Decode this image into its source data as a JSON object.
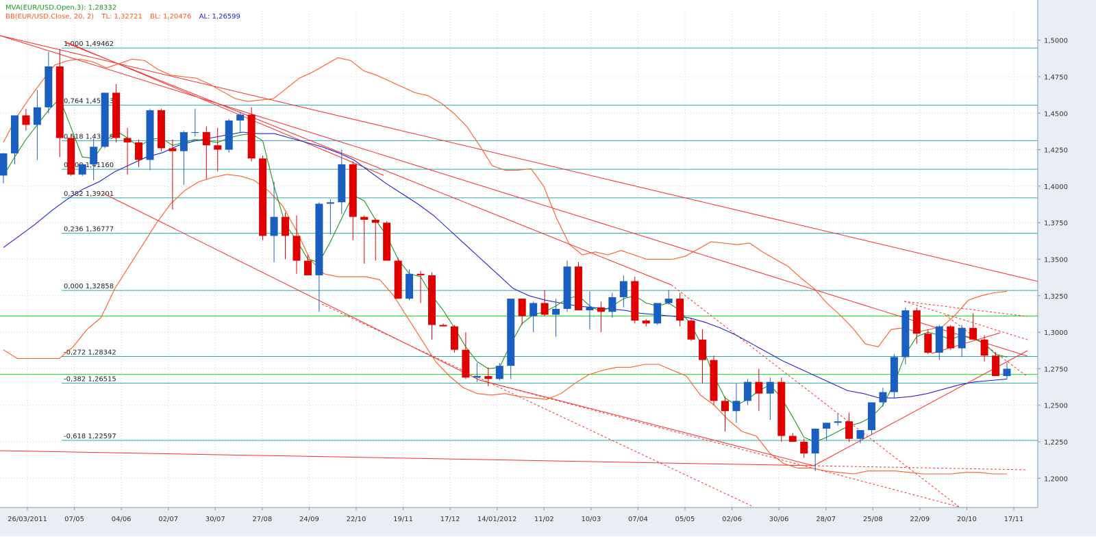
{
  "indicators": {
    "mva_label": "MVA(EUR/USD.Open,3): 1,28332",
    "bb_label": "BB(EUR/USD.Close, 20, 2)",
    "bb_tl_label": "TL: 1,32721",
    "bb_bl_label": "BL: 1,20476",
    "bb_al_label": "AL: 1,26599"
  },
  "colors": {
    "up": "#1a5fbf",
    "down": "#e00000",
    "mva": "#1a9a1a",
    "bb": "#ff5a1e",
    "al": "#2323d6",
    "fib": "#2aa8a8",
    "green_line": "#2ee02e",
    "trend": "#ff2a2a",
    "grid": "#c8d0d8",
    "axis_bg": "#e9eef5"
  },
  "chart_data": {
    "type": "candlestick",
    "symbol": "EUR/USD",
    "ylim": [
      1.18,
      1.52
    ],
    "y_ticks": [
      "1,2000",
      "1,2250",
      "1,2500",
      "1,2750",
      "1,3000",
      "1,3250",
      "1,3500",
      "1,3750",
      "1,4000",
      "1,4250",
      "1,4500",
      "1,4750",
      "1,5000"
    ],
    "x_labels": [
      "26/03/2011",
      "07/05",
      "04/06",
      "02/07",
      "30/07",
      "27/08",
      "24/09",
      "22/10",
      "19/11",
      "17/12",
      "14/01/2012",
      "11/02",
      "10/03",
      "07/04",
      "05/05",
      "02/06",
      "30/06",
      "28/07",
      "25/08",
      "22/09",
      "20/10",
      "17/11"
    ],
    "fib_levels": [
      {
        "label": "1,000 1,49462",
        "value": 1.49462
      },
      {
        "label": "0,764 1,45543",
        "value": 1.45543
      },
      {
        "label": "0,618 1,43119",
        "value": 1.43119
      },
      {
        "label": "0,500 1,41160",
        "value": 1.4116
      },
      {
        "label": "0,382 1,39201",
        "value": 1.39201
      },
      {
        "label": "0,236 1,36777",
        "value": 1.36777
      },
      {
        "label": "0,000 1,32858",
        "value": 1.32858
      },
      {
        "label": "-0,272 1,28342",
        "value": 1.28342
      },
      {
        "label": "-0,382 1,26515",
        "value": 1.26515
      },
      {
        "label": "-0,618 1,22597",
        "value": 1.22597
      }
    ],
    "horizontal_lines": [
      {
        "label": "1,31115",
        "value": 1.31115
      },
      {
        "label": "1,27119",
        "value": 1.27119
      }
    ],
    "last_price": {
      "label": "1,27523",
      "value": 1.27523
    },
    "candles": [
      [
        1.4073,
        1.4227,
        1.402,
        1.4225
      ],
      [
        1.4225,
        1.4485,
        1.415,
        1.4485
      ],
      [
        1.4485,
        1.453,
        1.438,
        1.442
      ],
      [
        1.442,
        1.466,
        1.418,
        1.454
      ],
      [
        1.454,
        1.492,
        1.45,
        1.482
      ],
      [
        1.482,
        1.494,
        1.42,
        1.433
      ],
      [
        1.433,
        1.436,
        1.407,
        1.408
      ],
      [
        1.408,
        1.416,
        1.407,
        1.415
      ],
      [
        1.415,
        1.433,
        1.404,
        1.427
      ],
      [
        1.427,
        1.464,
        1.426,
        1.464
      ],
      [
        1.464,
        1.47,
        1.43,
        1.433
      ],
      [
        1.433,
        1.44,
        1.408,
        1.43
      ],
      [
        1.43,
        1.432,
        1.413,
        1.418
      ],
      [
        1.418,
        1.453,
        1.411,
        1.452
      ],
      [
        1.452,
        1.453,
        1.424,
        1.426
      ],
      [
        1.426,
        1.432,
        1.384,
        1.424
      ],
      [
        1.424,
        1.438,
        1.401,
        1.437
      ],
      [
        1.437,
        1.453,
        1.434,
        1.437
      ],
      [
        1.437,
        1.441,
        1.405,
        1.428
      ],
      [
        1.428,
        1.44,
        1.41,
        1.425
      ],
      [
        1.425,
        1.446,
        1.423,
        1.445
      ],
      [
        1.445,
        1.451,
        1.437,
        1.449
      ],
      [
        1.449,
        1.454,
        1.417,
        1.419
      ],
      [
        1.419,
        1.421,
        1.363,
        1.366
      ],
      [
        1.366,
        1.403,
        1.348,
        1.379
      ],
      [
        1.379,
        1.382,
        1.35,
        1.366
      ],
      [
        1.366,
        1.38,
        1.34,
        1.349
      ],
      [
        1.349,
        1.353,
        1.339,
        1.339
      ],
      [
        1.339,
        1.389,
        1.314,
        1.388
      ],
      [
        1.388,
        1.391,
        1.367,
        1.389
      ],
      [
        1.389,
        1.425,
        1.381,
        1.415
      ],
      [
        1.415,
        1.417,
        1.363,
        1.379
      ],
      [
        1.379,
        1.38,
        1.347,
        1.377
      ],
      [
        1.377,
        1.378,
        1.349,
        1.375
      ],
      [
        1.375,
        1.376,
        1.352,
        1.349
      ],
      [
        1.349,
        1.351,
        1.323,
        1.323
      ],
      [
        1.323,
        1.343,
        1.322,
        1.34
      ],
      [
        1.34,
        1.342,
        1.32,
        1.339
      ],
      [
        1.339,
        1.341,
        1.295,
        1.305
      ],
      [
        1.305,
        1.306,
        1.304,
        1.304
      ],
      [
        1.304,
        1.305,
        1.286,
        1.288
      ],
      [
        1.288,
        1.3,
        1.268,
        1.269
      ],
      [
        1.269,
        1.279,
        1.266,
        1.27
      ],
      [
        1.27,
        1.276,
        1.263,
        1.268
      ],
      [
        1.268,
        1.279,
        1.267,
        1.277
      ],
      [
        1.277,
        1.323,
        1.268,
        1.323
      ],
      [
        1.323,
        1.323,
        1.305,
        1.311
      ],
      [
        1.311,
        1.321,
        1.3,
        1.32
      ],
      [
        1.32,
        1.329,
        1.311,
        1.312
      ],
      [
        1.312,
        1.323,
        1.297,
        1.316
      ],
      [
        1.316,
        1.349,
        1.314,
        1.345
      ],
      [
        1.345,
        1.348,
        1.315,
        1.315
      ],
      [
        1.315,
        1.328,
        1.302,
        1.317
      ],
      [
        1.317,
        1.321,
        1.3,
        1.314
      ],
      [
        1.314,
        1.327,
        1.31,
        1.324
      ],
      [
        1.324,
        1.339,
        1.317,
        1.335
      ],
      [
        1.335,
        1.338,
        1.306,
        1.308
      ],
      [
        1.308,
        1.309,
        1.304,
        1.306
      ],
      [
        1.306,
        1.32,
        1.305,
        1.32
      ],
      [
        1.32,
        1.329,
        1.319,
        1.323
      ],
      [
        1.323,
        1.327,
        1.304,
        1.308
      ],
      [
        1.308,
        1.31,
        1.294,
        1.295
      ],
      [
        1.295,
        1.302,
        1.265,
        1.281
      ],
      [
        1.281,
        1.284,
        1.25,
        1.253
      ],
      [
        1.253,
        1.256,
        1.232,
        1.246
      ],
      [
        1.246,
        1.265,
        1.238,
        1.253
      ],
      [
        1.253,
        1.268,
        1.25,
        1.266
      ],
      [
        1.266,
        1.275,
        1.246,
        1.258
      ],
      [
        1.258,
        1.269,
        1.24,
        1.266
      ],
      [
        1.266,
        1.269,
        1.225,
        1.229
      ],
      [
        1.229,
        1.231,
        1.226,
        1.225
      ],
      [
        1.225,
        1.227,
        1.214,
        1.217
      ],
      [
        1.217,
        1.233,
        1.205,
        1.234
      ],
      [
        1.234,
        1.238,
        1.226,
        1.238
      ],
      [
        1.238,
        1.244,
        1.236,
        1.239
      ],
      [
        1.239,
        1.245,
        1.225,
        1.227
      ],
      [
        1.227,
        1.232,
        1.224,
        1.233
      ],
      [
        1.233,
        1.252,
        1.23,
        1.252
      ],
      [
        1.252,
        1.262,
        1.249,
        1.259
      ],
      [
        1.259,
        1.285,
        1.255,
        1.283
      ],
      [
        1.283,
        1.317,
        1.278,
        1.315
      ],
      [
        1.315,
        1.317,
        1.292,
        1.299
      ],
      [
        1.299,
        1.302,
        1.285,
        1.286
      ],
      [
        1.286,
        1.305,
        1.281,
        1.304
      ],
      [
        1.304,
        1.305,
        1.288,
        1.289
      ],
      [
        1.289,
        1.305,
        1.283,
        1.303
      ],
      [
        1.303,
        1.313,
        1.295,
        1.295
      ],
      [
        1.295,
        1.298,
        1.28,
        1.284
      ],
      [
        1.284,
        1.286,
        1.27,
        1.27
      ],
      [
        1.27,
        1.279,
        1.268,
        1.275
      ]
    ],
    "mva": [
      1.407,
      1.42,
      1.432,
      1.442,
      1.452,
      1.46,
      1.44,
      1.42,
      1.419,
      1.43,
      1.438,
      1.433,
      1.427,
      1.432,
      1.433,
      1.428,
      1.43,
      1.432,
      1.431,
      1.43,
      1.433,
      1.435,
      1.436,
      1.431,
      1.4,
      1.374,
      1.363,
      1.35,
      1.348,
      1.362,
      1.378,
      1.394,
      1.39,
      1.377,
      1.366,
      1.35,
      1.34,
      1.338,
      1.325,
      1.315,
      1.303,
      1.29,
      1.28,
      1.275,
      1.276,
      1.292,
      1.306,
      1.312,
      1.314,
      1.318,
      1.323,
      1.325,
      1.318,
      1.314,
      1.318,
      1.323,
      1.325,
      1.32,
      1.318,
      1.32,
      1.315,
      1.305,
      1.29,
      1.27,
      1.255,
      1.25,
      1.254,
      1.26,
      1.264,
      1.255,
      1.242,
      1.228,
      1.225,
      1.228,
      1.232,
      1.236,
      1.238,
      1.242,
      1.25,
      1.265,
      1.285,
      1.297,
      1.3,
      1.298,
      1.295,
      1.298,
      1.296,
      1.292,
      1.285,
      1.283
    ],
    "bb_upper": [
      1.43,
      1.447,
      1.46,
      1.472,
      1.483,
      1.486,
      1.487,
      1.485,
      1.481,
      1.484,
      1.487,
      1.486,
      1.48,
      1.476,
      1.475,
      1.474,
      1.47,
      1.465,
      1.46,
      1.458,
      1.459,
      1.46,
      1.467,
      1.474,
      1.478,
      1.483,
      1.488,
      1.486,
      1.479,
      1.476,
      1.472,
      1.468,
      1.464,
      1.462,
      1.457,
      1.45,
      1.441,
      1.428,
      1.414,
      1.411,
      1.411,
      1.412,
      1.4,
      1.378,
      1.36,
      1.353,
      1.355,
      1.353,
      1.356,
      1.353,
      1.35,
      1.35,
      1.35,
      1.352,
      1.357,
      1.362,
      1.361,
      1.36,
      1.361,
      1.355,
      1.35,
      1.345,
      1.337,
      1.33,
      1.32,
      1.312,
      1.303,
      1.292,
      1.29,
      1.302,
      1.303,
      1.3,
      1.302,
      1.304,
      1.312,
      1.322,
      1.325,
      1.327,
      1.328
    ],
    "bb_lower": [
      1.288,
      1.282,
      1.282,
      1.282,
      1.282,
      1.29,
      1.302,
      1.31,
      1.33,
      1.345,
      1.36,
      1.375,
      1.388,
      1.397,
      1.403,
      1.406,
      1.408,
      1.407,
      1.404,
      1.397,
      1.387,
      1.37,
      1.35,
      1.34,
      1.338,
      1.338,
      1.338,
      1.336,
      1.325,
      1.31,
      1.295,
      1.28,
      1.27,
      1.262,
      1.258,
      1.257,
      1.258,
      1.256,
      1.255,
      1.254,
      1.258,
      1.265,
      1.271,
      1.274,
      1.276,
      1.276,
      1.278,
      1.278,
      1.274,
      1.27,
      1.257,
      1.25,
      1.24,
      1.232,
      1.229,
      1.217,
      1.21,
      1.207,
      1.207,
      1.205,
      1.204,
      1.203,
      1.205,
      1.205,
      1.205,
      1.204,
      1.203,
      1.203,
      1.203,
      1.204,
      1.204,
      1.203,
      1.203
    ],
    "al": [
      1.358,
      1.366,
      1.374,
      1.383,
      1.391,
      1.398,
      1.403,
      1.41,
      1.415,
      1.42,
      1.423,
      1.428,
      1.431,
      1.433,
      1.435,
      1.437,
      1.436,
      1.436,
      1.433,
      1.43,
      1.427,
      1.423,
      1.418,
      1.41,
      1.402,
      1.395,
      1.388,
      1.38,
      1.37,
      1.36,
      1.35,
      1.34,
      1.33,
      1.325,
      1.322,
      1.32,
      1.318,
      1.317,
      1.316,
      1.315,
      1.313,
      1.312,
      1.311,
      1.31,
      1.307,
      1.303,
      1.298,
      1.292,
      1.286,
      1.28,
      1.275,
      1.27,
      1.265,
      1.26,
      1.258,
      1.255,
      1.255,
      1.256,
      1.258,
      1.261,
      1.264,
      1.266,
      1.267,
      1.268
    ]
  }
}
